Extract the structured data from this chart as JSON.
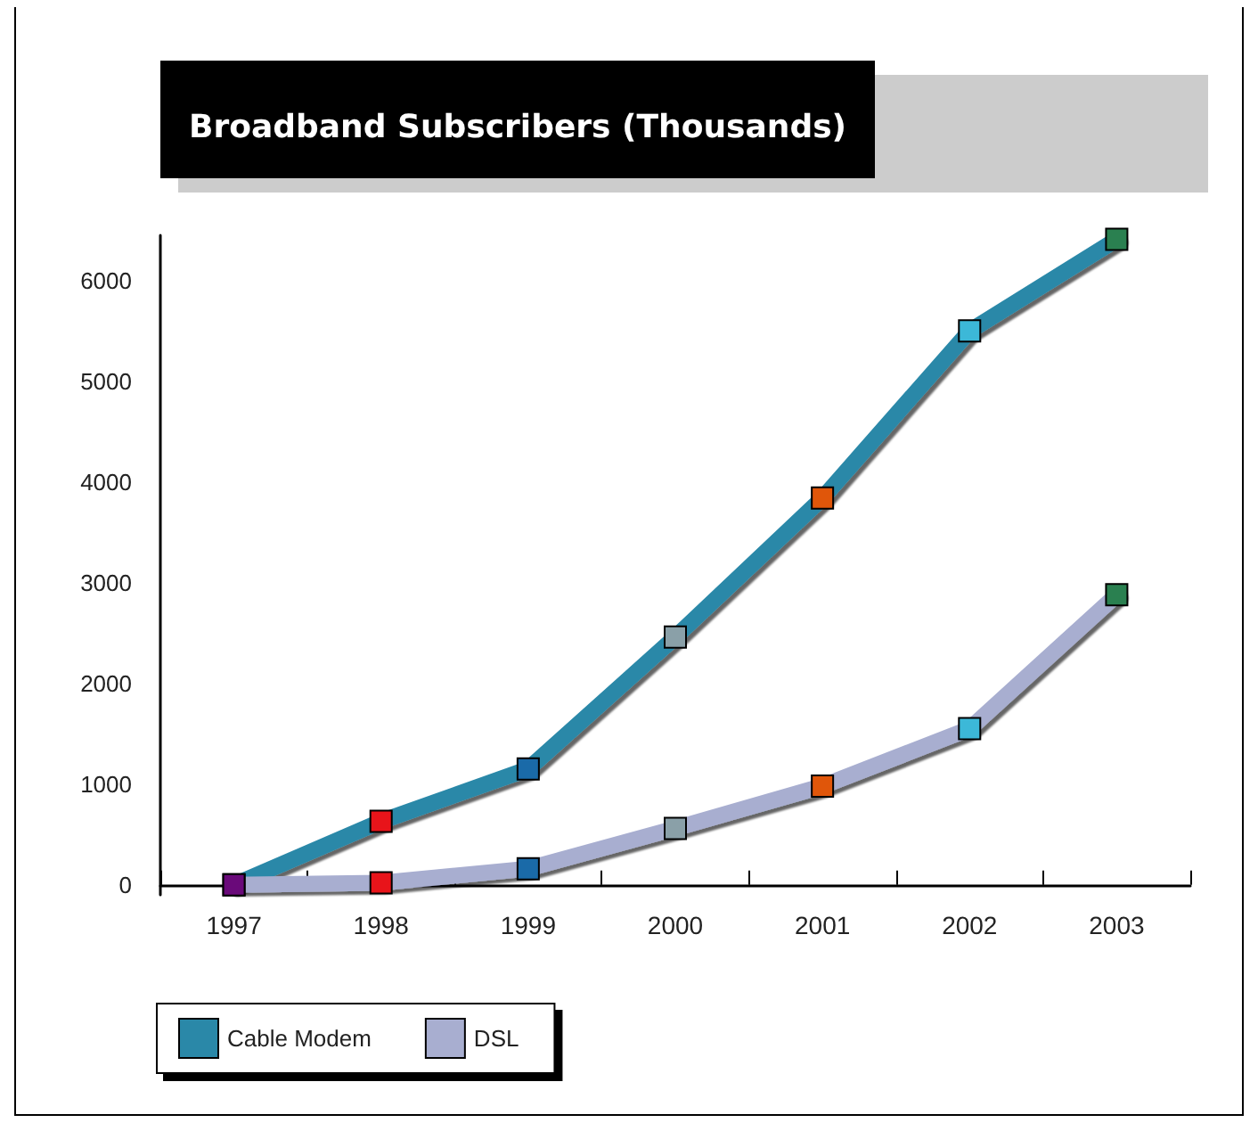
{
  "chart_data": {
    "type": "line",
    "title": "Broadband Subscribers (Thousands)",
    "categories": [
      "1997",
      "1998",
      "1999",
      "2000",
      "2001",
      "2002",
      "2003"
    ],
    "series": [
      {
        "name": "Cable Modem",
        "color": "#2a88a8",
        "values": [
          0,
          630,
          1150,
          2460,
          3840,
          5500,
          6410
        ],
        "colors": [
          "#6a0a7a",
          "#e8141a",
          "#1a6aa8",
          "#8aa0a8",
          "#e0560a",
          "#3cb8d8",
          "#2a8050"
        ]
      },
      {
        "name": "DSL",
        "color": "#a8aed0",
        "values": [
          0,
          20,
          160,
          560,
          980,
          1550,
          2880
        ],
        "colors": [
          "#6a0a7a",
          "#e8141a",
          "#1a6aa8",
          "#8aa0a8",
          "#e0560a",
          "#3cb8d8",
          "#2a8050"
        ]
      }
    ],
    "ylim": [
      -100,
      6450
    ],
    "yticks": [
      0,
      1000,
      2000,
      3000,
      4000,
      5000,
      6000
    ],
    "grid": false,
    "legend": "bottom left",
    "marker": "square",
    "line_style": "solid"
  }
}
